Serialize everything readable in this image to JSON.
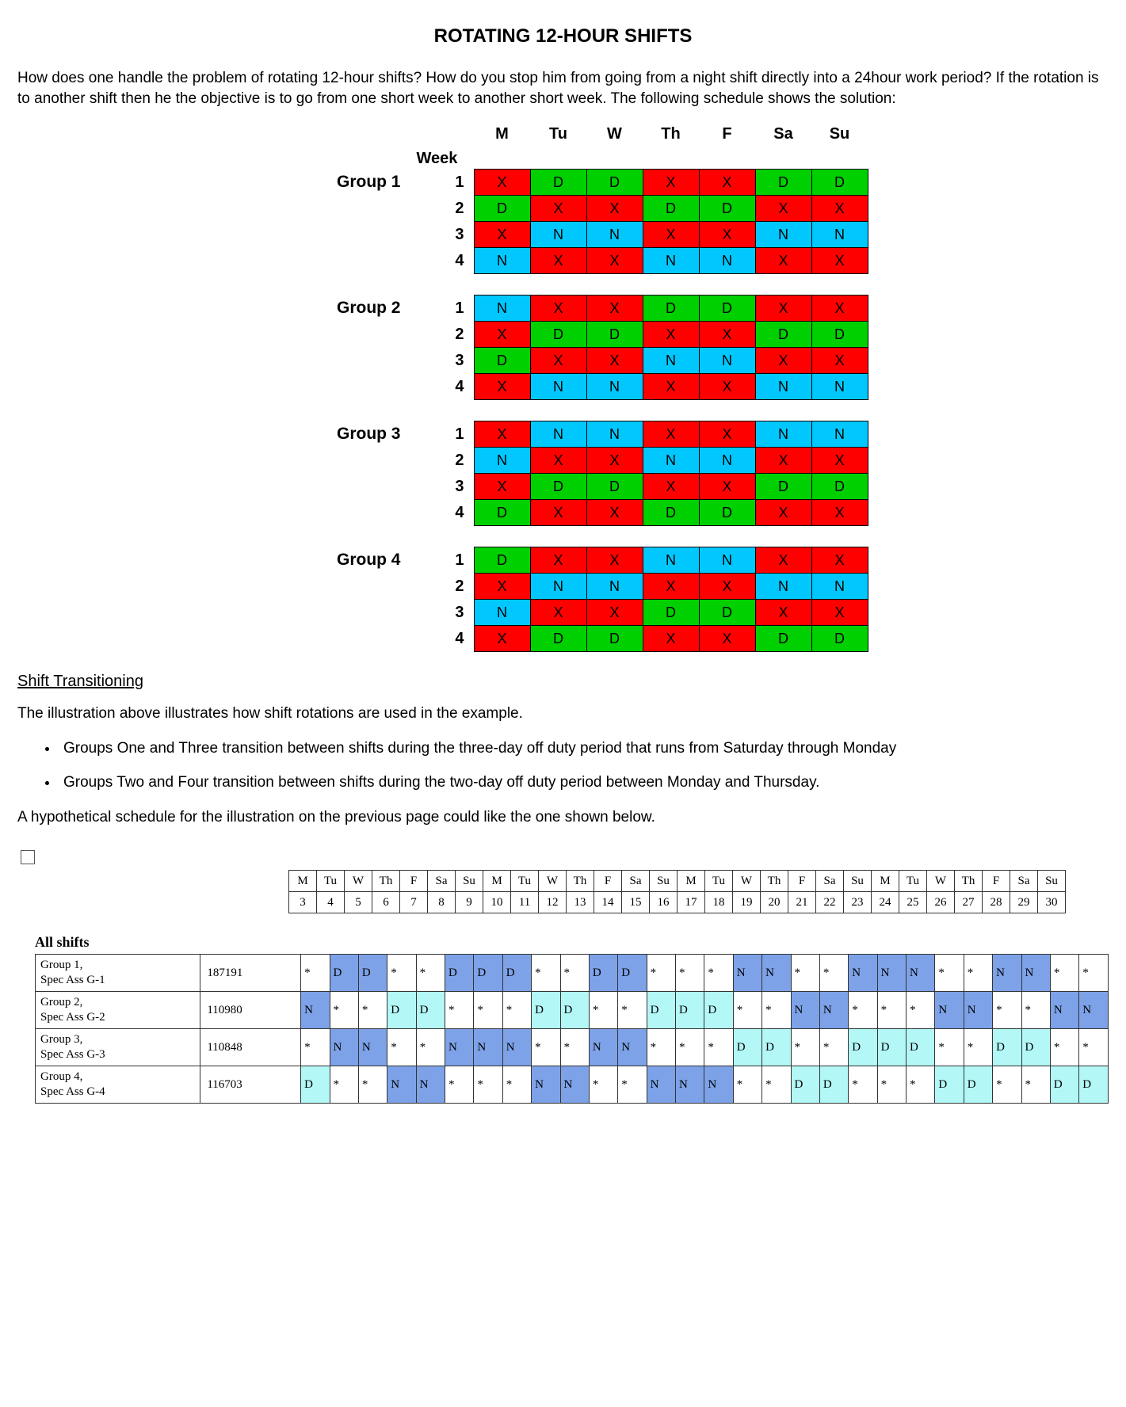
{
  "title": "ROTATING 12-HOUR SHIFTS",
  "intro": "How does one handle the problem of rotating 12-hour shifts? How do you stop him from going from a night shift directly into a 24hour work period?  If the rotation is to another shift then he the objective is to go from one short week to another short week. The following schedule shows the solution:",
  "days": [
    "M",
    "Tu",
    "W",
    "Th",
    "F",
    "Sa",
    "Su"
  ],
  "week_label": "Week",
  "colors": {
    "D": "#00d000",
    "N": "#00c8ff",
    "X": "#ff0000",
    "page_bg": "#ffffff",
    "text": "#000000",
    "cell_border": "#000000",
    "hypo_border": "#333333",
    "hypo_blue": "#7da2e8",
    "hypo_cyan": "#b3f7f7",
    "hypo_white": "#ffffff"
  },
  "groups": [
    {
      "name": "Group 1",
      "rows": [
        [
          "X",
          "D",
          "D",
          "X",
          "X",
          "D",
          "D"
        ],
        [
          "D",
          "X",
          "X",
          "D",
          "D",
          "X",
          "X"
        ],
        [
          "X",
          "N",
          "N",
          "X",
          "X",
          "N",
          "N"
        ],
        [
          "N",
          "X",
          "X",
          "N",
          "N",
          "X",
          "X"
        ]
      ]
    },
    {
      "name": "Group 2",
      "rows": [
        [
          "N",
          "X",
          "X",
          "D",
          "D",
          "X",
          "X"
        ],
        [
          "X",
          "D",
          "D",
          "X",
          "X",
          "D",
          "D"
        ],
        [
          "D",
          "X",
          "X",
          "N",
          "N",
          "X",
          "X"
        ],
        [
          "X",
          "N",
          "N",
          "X",
          "X",
          "N",
          "N"
        ]
      ]
    },
    {
      "name": "Group 3",
      "rows": [
        [
          "X",
          "N",
          "N",
          "X",
          "X",
          "N",
          "N"
        ],
        [
          "N",
          "X",
          "X",
          "N",
          "N",
          "X",
          "X"
        ],
        [
          "X",
          "D",
          "D",
          "X",
          "X",
          "D",
          "D"
        ],
        [
          "D",
          "X",
          "X",
          "D",
          "D",
          "X",
          "X"
        ]
      ]
    },
    {
      "name": "Group 4",
      "rows": [
        [
          "D",
          "X",
          "X",
          "N",
          "N",
          "X",
          "X"
        ],
        [
          "X",
          "N",
          "N",
          "X",
          "X",
          "N",
          "N"
        ],
        [
          "N",
          "X",
          "X",
          "D",
          "D",
          "X",
          "X"
        ],
        [
          "X",
          "D",
          "D",
          "X",
          "X",
          "D",
          "D"
        ]
      ]
    }
  ],
  "subhead": "Shift Transitioning",
  "explain": "The illustration above illustrates how shift rotations are used in the example.",
  "bullets": [
    "Groups One and Three transition between shifts during the three-day off duty period that runs from Saturday through Monday",
    "Groups Two and Four transition between shifts during the two-day off duty period between Monday and Thursday."
  ],
  "hypo_intro": "A hypothetical schedule for the illustration on the previous page could like the one shown below.",
  "calendar": {
    "dow": [
      "M",
      "Tu",
      "W",
      "Th",
      "F",
      "Sa",
      "Su",
      "M",
      "Tu",
      "W",
      "Th",
      "F",
      "Sa",
      "Su",
      "M",
      "Tu",
      "W",
      "Th",
      "F",
      "Sa",
      "Su",
      "M",
      "Tu",
      "W",
      "Th",
      "F",
      "Sa",
      "Su"
    ],
    "dates": [
      "3",
      "4",
      "5",
      "6",
      "7",
      "8",
      "9",
      "10",
      "11",
      "12",
      "13",
      "14",
      "15",
      "16",
      "17",
      "18",
      "19",
      "20",
      "21",
      "22",
      "23",
      "24",
      "25",
      "26",
      "27",
      "28",
      "29",
      "30"
    ]
  },
  "allshifts_label": "All shifts",
  "hypo_rows": [
    {
      "name_l1": "Group 1,",
      "name_l2": "Spec Ass  G-1",
      "num": "187191",
      "cells": [
        {
          "t": "*",
          "c": "w"
        },
        {
          "t": "D",
          "c": "b"
        },
        {
          "t": "D",
          "c": "b"
        },
        {
          "t": "*",
          "c": "w"
        },
        {
          "t": "*",
          "c": "w"
        },
        {
          "t": "D",
          "c": "b"
        },
        {
          "t": "D",
          "c": "b"
        },
        {
          "t": "D",
          "c": "b"
        },
        {
          "t": "*",
          "c": "w"
        },
        {
          "t": "*",
          "c": "w"
        },
        {
          "t": "D",
          "c": "b"
        },
        {
          "t": "D",
          "c": "b"
        },
        {
          "t": "*",
          "c": "w"
        },
        {
          "t": "*",
          "c": "w"
        },
        {
          "t": "*",
          "c": "w"
        },
        {
          "t": "N",
          "c": "b"
        },
        {
          "t": "N",
          "c": "b"
        },
        {
          "t": "*",
          "c": "w"
        },
        {
          "t": "*",
          "c": "w"
        },
        {
          "t": "N",
          "c": "b"
        },
        {
          "t": "N",
          "c": "b"
        },
        {
          "t": "N",
          "c": "b"
        },
        {
          "t": "*",
          "c": "w"
        },
        {
          "t": "*",
          "c": "w"
        },
        {
          "t": "N",
          "c": "b"
        },
        {
          "t": "N",
          "c": "b"
        },
        {
          "t": "*",
          "c": "w"
        },
        {
          "t": "*",
          "c": "w"
        }
      ]
    },
    {
      "name_l1": "Group 2,",
      "name_l2": "Spec Ass  G-2",
      "num": "110980",
      "cells": [
        {
          "t": "N",
          "c": "b"
        },
        {
          "t": "*",
          "c": "w"
        },
        {
          "t": "*",
          "c": "w"
        },
        {
          "t": "D",
          "c": "c"
        },
        {
          "t": "D",
          "c": "c"
        },
        {
          "t": "*",
          "c": "w"
        },
        {
          "t": "*",
          "c": "w"
        },
        {
          "t": "*",
          "c": "w"
        },
        {
          "t": "D",
          "c": "c"
        },
        {
          "t": "D",
          "c": "c"
        },
        {
          "t": "*",
          "c": "w"
        },
        {
          "t": "*",
          "c": "w"
        },
        {
          "t": "D",
          "c": "c"
        },
        {
          "t": "D",
          "c": "c"
        },
        {
          "t": "D",
          "c": "c"
        },
        {
          "t": "*",
          "c": "w"
        },
        {
          "t": "*",
          "c": "w"
        },
        {
          "t": "N",
          "c": "b"
        },
        {
          "t": "N",
          "c": "b"
        },
        {
          "t": "*",
          "c": "w"
        },
        {
          "t": "*",
          "c": "w"
        },
        {
          "t": "*",
          "c": "w"
        },
        {
          "t": "N",
          "c": "b"
        },
        {
          "t": "N",
          "c": "b"
        },
        {
          "t": "*",
          "c": "w"
        },
        {
          "t": "*",
          "c": "w"
        },
        {
          "t": "N",
          "c": "b"
        },
        {
          "t": "N",
          "c": "b"
        }
      ]
    },
    {
      "name_l1": "Group 3,",
      "name_l2": "Spec Ass  G-3",
      "num": "110848",
      "cells": [
        {
          "t": "*",
          "c": "w"
        },
        {
          "t": "N",
          "c": "b"
        },
        {
          "t": "N",
          "c": "b"
        },
        {
          "t": "*",
          "c": "w"
        },
        {
          "t": "*",
          "c": "w"
        },
        {
          "t": "N",
          "c": "b"
        },
        {
          "t": "N",
          "c": "b"
        },
        {
          "t": "N",
          "c": "b"
        },
        {
          "t": "*",
          "c": "w"
        },
        {
          "t": "*",
          "c": "w"
        },
        {
          "t": "N",
          "c": "b"
        },
        {
          "t": "N",
          "c": "b"
        },
        {
          "t": "*",
          "c": "w"
        },
        {
          "t": "*",
          "c": "w"
        },
        {
          "t": "*",
          "c": "w"
        },
        {
          "t": "D",
          "c": "c"
        },
        {
          "t": "D",
          "c": "c"
        },
        {
          "t": "*",
          "c": "w"
        },
        {
          "t": "*",
          "c": "w"
        },
        {
          "t": "D",
          "c": "c"
        },
        {
          "t": "D",
          "c": "c"
        },
        {
          "t": "D",
          "c": "c"
        },
        {
          "t": "*",
          "c": "w"
        },
        {
          "t": "*",
          "c": "w"
        },
        {
          "t": "D",
          "c": "c"
        },
        {
          "t": "D",
          "c": "c"
        },
        {
          "t": "*",
          "c": "w"
        },
        {
          "t": "*",
          "c": "w"
        }
      ]
    },
    {
      "name_l1": "Group 4,",
      "name_l2": "Spec Ass  G-4",
      "num": "116703",
      "cells": [
        {
          "t": "D",
          "c": "c"
        },
        {
          "t": "*",
          "c": "w"
        },
        {
          "t": "*",
          "c": "w"
        },
        {
          "t": "N",
          "c": "b"
        },
        {
          "t": "N",
          "c": "b"
        },
        {
          "t": "*",
          "c": "w"
        },
        {
          "t": "*",
          "c": "w"
        },
        {
          "t": "*",
          "c": "w"
        },
        {
          "t": "N",
          "c": "b"
        },
        {
          "t": "N",
          "c": "b"
        },
        {
          "t": "*",
          "c": "w"
        },
        {
          "t": "*",
          "c": "w"
        },
        {
          "t": "N",
          "c": "b"
        },
        {
          "t": "N",
          "c": "b"
        },
        {
          "t": "N",
          "c": "b"
        },
        {
          "t": "*",
          "c": "w"
        },
        {
          "t": "*",
          "c": "w"
        },
        {
          "t": "D",
          "c": "c"
        },
        {
          "t": "D",
          "c": "c"
        },
        {
          "t": "*",
          "c": "w"
        },
        {
          "t": "*",
          "c": "w"
        },
        {
          "t": "*",
          "c": "w"
        },
        {
          "t": "D",
          "c": "c"
        },
        {
          "t": "D",
          "c": "c"
        },
        {
          "t": "*",
          "c": "w"
        },
        {
          "t": "*",
          "c": "w"
        },
        {
          "t": "D",
          "c": "c"
        },
        {
          "t": "D",
          "c": "c"
        }
      ]
    }
  ]
}
